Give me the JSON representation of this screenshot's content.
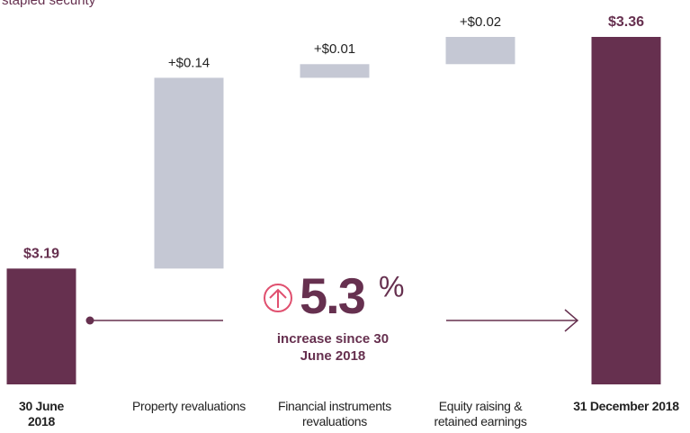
{
  "chart_data": {
    "type": "waterfall",
    "subtitle": "stapled security",
    "categories": [
      "30 June 2018",
      "Property revaluations",
      "Financial instruments revaluations",
      "Equity raising & retained earnings",
      "31 December 2018"
    ],
    "measures": [
      "absolute",
      "relative",
      "relative",
      "relative",
      "total"
    ],
    "values": [
      3.19,
      0.14,
      0.01,
      0.02,
      3.36
    ],
    "value_labels": [
      "$3.19",
      "+$0.14",
      "+$0.01",
      "+$0.02",
      "$3.36"
    ],
    "total_color": "#66304f",
    "delta_color": "#c5c8d4",
    "ylim": [
      3.105,
      3.36
    ],
    "annotation": {
      "figure": "5.3",
      "unit": "%",
      "text": "increase since 30 June 2018"
    }
  }
}
